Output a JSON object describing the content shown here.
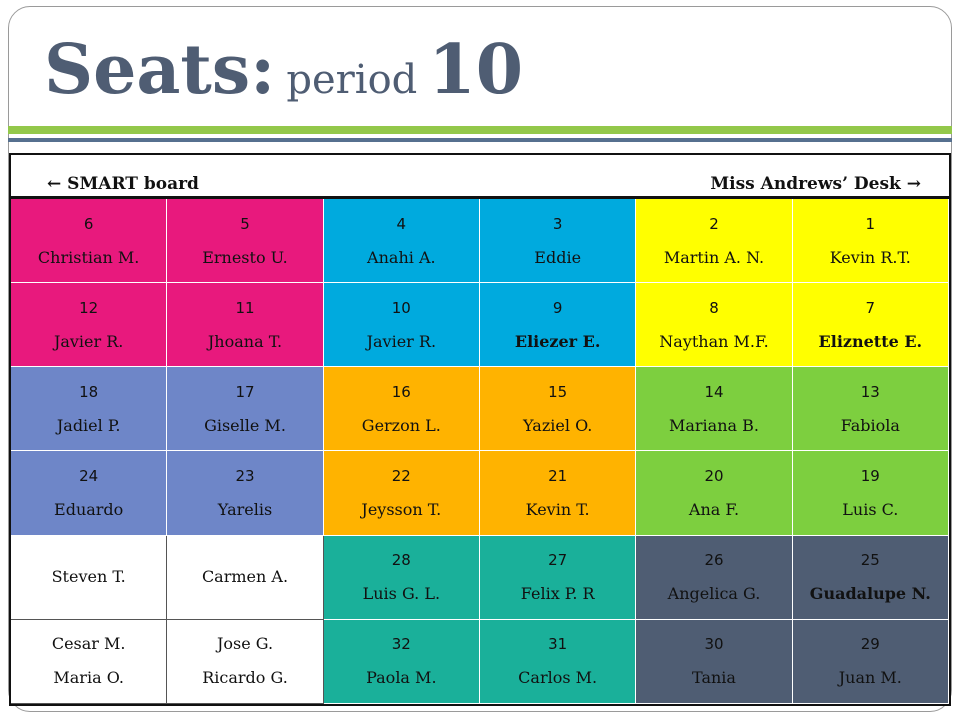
{
  "title": {
    "word1": "Seats:",
    "word2": "period",
    "word3": "10"
  },
  "front": {
    "left_label": "← SMART board",
    "right_label": "Miss Andrews’ Desk →"
  },
  "colors": {
    "magenta": "#e8197d",
    "blue": "#00aade",
    "yellow": "#ffff00",
    "periwinkle": "#6e86c8",
    "orange": "#ffb300",
    "green": "#7dcf3f",
    "teal": "#1ab09a",
    "slate": "#4f5d73",
    "white": "#ffffff",
    "title": "#4f5d73",
    "rule_green": "#93c84a",
    "rule_blue": "#56708f"
  },
  "seats": [
    [
      {
        "num": "6",
        "name": "Christian M.",
        "color": "magenta"
      },
      {
        "num": "5",
        "name": "Ernesto U.",
        "color": "magenta"
      },
      {
        "num": "4",
        "name": "Anahi A.",
        "color": "blue"
      },
      {
        "num": "3",
        "name": "Eddie",
        "color": "blue"
      },
      {
        "num": "2",
        "name": "Martin A. N.",
        "color": "yellow"
      },
      {
        "num": "1",
        "name": "Kevin R.T.",
        "color": "yellow"
      }
    ],
    [
      {
        "num": "12",
        "name": "Javier R.",
        "color": "magenta"
      },
      {
        "num": "11",
        "name": "Jhoana T.",
        "color": "magenta"
      },
      {
        "num": "10",
        "name": "Javier R.",
        "color": "blue"
      },
      {
        "num": "9",
        "name": "Eliezer E.",
        "color": "blue",
        "bold": true
      },
      {
        "num": "8",
        "name": "Naythan M.F.",
        "color": "yellow"
      },
      {
        "num": "7",
        "name": "Eliznette E.",
        "color": "yellow",
        "bold": true
      }
    ],
    [
      {
        "num": "18",
        "name": "Jadiel P.",
        "color": "periwinkle"
      },
      {
        "num": "17",
        "name": "Giselle M.",
        "color": "periwinkle"
      },
      {
        "num": "16",
        "name": "Gerzon L.",
        "color": "orange"
      },
      {
        "num": "15",
        "name": "Yaziel O.",
        "color": "orange"
      },
      {
        "num": "14",
        "name": "Mariana B.",
        "color": "green"
      },
      {
        "num": "13",
        "name": "Fabiola",
        "color": "green"
      }
    ],
    [
      {
        "num": "24",
        "name": "Eduardo",
        "color": "periwinkle"
      },
      {
        "num": "23",
        "name": "Yarelis",
        "color": "periwinkle"
      },
      {
        "num": "22",
        "name": "Jeysson T.",
        "color": "orange"
      },
      {
        "num": "21",
        "name": "Kevin T.",
        "color": "orange"
      },
      {
        "num": "20",
        "name": "Ana F.",
        "color": "green"
      },
      {
        "num": "19",
        "name": "Luis C.",
        "color": "green"
      }
    ],
    [
      {
        "num": "",
        "name": "Steven T.",
        "color": "white"
      },
      {
        "num": "",
        "name": "Carmen A.",
        "color": "white"
      },
      {
        "num": "28",
        "name": "Luis G. L.",
        "color": "teal"
      },
      {
        "num": "27",
        "name": "Felix P. R",
        "color": "teal"
      },
      {
        "num": "26",
        "name": "Angelica G.",
        "color": "slate"
      },
      {
        "num": "25",
        "name": "Guadalupe N.",
        "color": "slate",
        "bold": true
      }
    ],
    [
      {
        "num": "",
        "name": "Cesar M.",
        "name2": "Maria O.",
        "color": "white"
      },
      {
        "num": "",
        "name": "Jose G.",
        "name2": "Ricardo G.",
        "color": "white"
      },
      {
        "num": "32",
        "name": "Paola M.",
        "color": "teal"
      },
      {
        "num": "31",
        "name": "Carlos M.",
        "color": "teal"
      },
      {
        "num": "30",
        "name": "Tania",
        "color": "slate"
      },
      {
        "num": "29",
        "name": "Juan M.",
        "color": "slate"
      }
    ]
  ]
}
